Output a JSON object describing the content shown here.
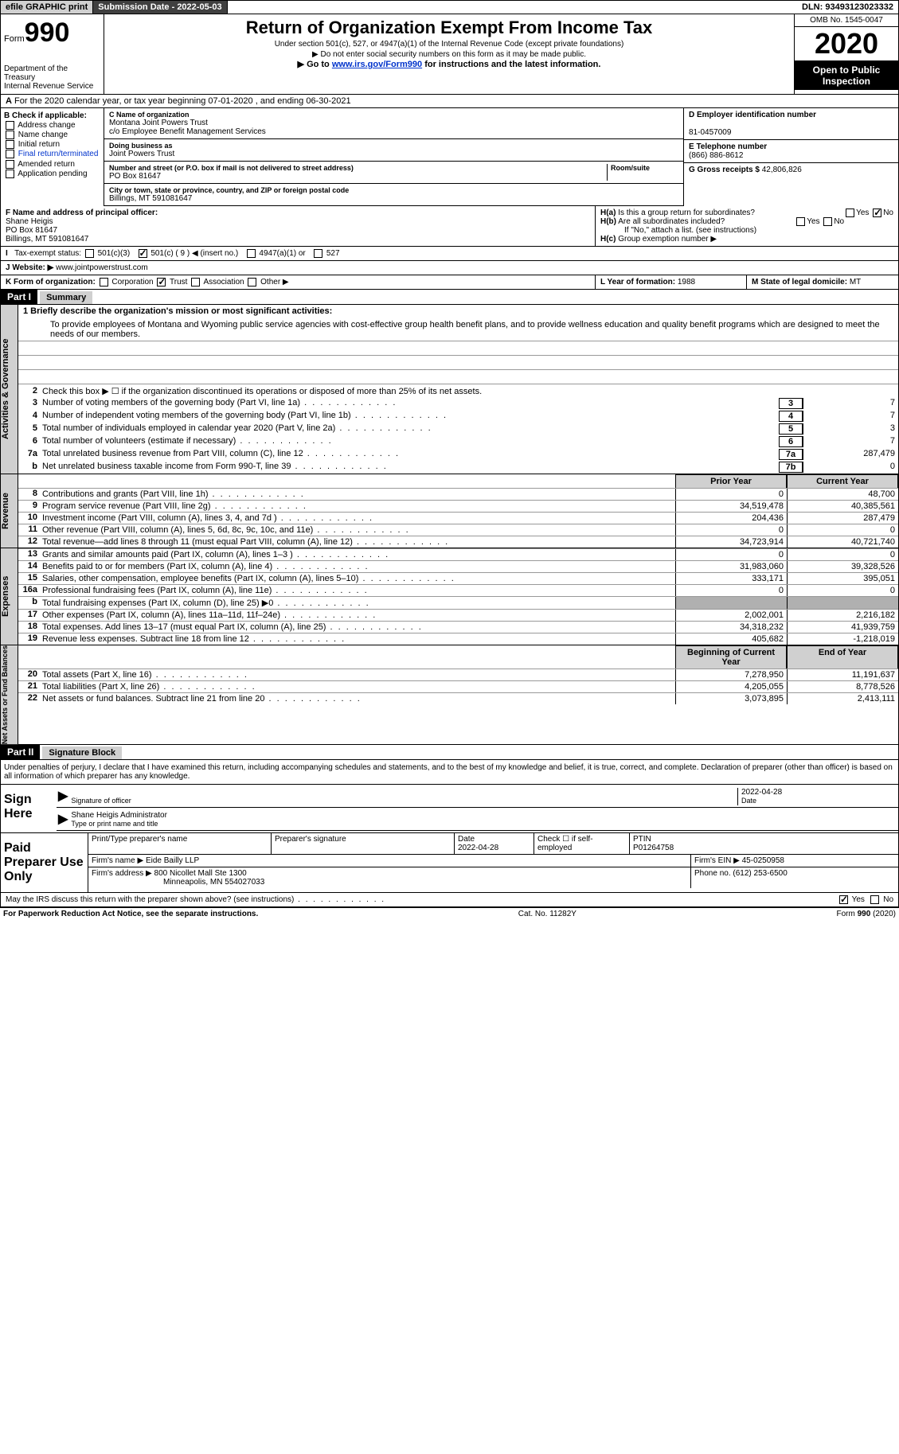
{
  "topbar": {
    "efile": "efile GRAPHIC print",
    "submission": "Submission Date - 2022-05-03",
    "dln": "DLN: 93493123023332"
  },
  "header": {
    "form_label": "Form",
    "form_num": "990",
    "title": "Return of Organization Exempt From Income Tax",
    "sub1": "Under section 501(c), 527, or 4947(a)(1) of the Internal Revenue Code (except private foundations)",
    "sub2": "▶ Do not enter social security numbers on this form as it may be made public.",
    "sub3_pre": "▶ Go to ",
    "sub3_link": "www.irs.gov/Form990",
    "sub3_post": " for instructions and the latest information.",
    "dept": "Department of the Treasury\nInternal Revenue Service",
    "omb": "OMB No. 1545-0047",
    "year": "2020",
    "inspect": "Open to Public Inspection"
  },
  "row_a": "For the 2020 calendar year, or tax year beginning 07-01-2020     , and ending 06-30-2021",
  "box_b": {
    "title": "B Check if applicable:",
    "items": [
      "Address change",
      "Name change",
      "Initial return",
      "Final return/terminated",
      "Amended return",
      "Application pending"
    ]
  },
  "box_c": {
    "label": "C Name of organization",
    "name": "Montana Joint Powers Trust",
    "co": "c/o Employee Benefit Management Services",
    "dba_label": "Doing business as",
    "dba": "Joint Powers Trust",
    "addr_label": "Number and street (or P.O. box if mail is not delivered to street address)",
    "room_label": "Room/suite",
    "addr": "PO Box 81647",
    "city_label": "City or town, state or province, country, and ZIP or foreign postal code",
    "city": "Billings, MT  591081647"
  },
  "box_d": {
    "label": "D Employer identification number",
    "val": "81-0457009"
  },
  "box_e": {
    "label": "E Telephone number",
    "val": "(866) 886-8612"
  },
  "box_g": {
    "label": "G Gross receipts $",
    "val": "42,806,826"
  },
  "box_f": {
    "label": "F Name and address of principal officer:",
    "name": "Shane Heigis",
    "addr": "PO Box 81647",
    "city": "Billings, MT  591081647"
  },
  "box_h": {
    "a": "Is this a group return for subordinates?",
    "b": "Are all subordinates included?",
    "note": "If \"No,\" attach a list. (see instructions)",
    "c": "Group exemption number ▶"
  },
  "tax_status": {
    "label": "Tax-exempt status:",
    "opts": [
      "501(c)(3)",
      "501(c) ( 9 ) ◀ (insert no.)",
      "4947(a)(1) or",
      "527"
    ]
  },
  "website": {
    "label": "J   Website: ▶",
    "val": "www.jointpowerstrust.com"
  },
  "box_k": {
    "label": "K Form of organization:",
    "opts": [
      "Corporation",
      "Trust",
      "Association",
      "Other ▶"
    ]
  },
  "box_l": {
    "label": "L Year of formation:",
    "val": "1988"
  },
  "box_m": {
    "label": "M State of legal domicile:",
    "val": "MT"
  },
  "part1": {
    "header": "Part I",
    "title": "Summary",
    "mission_label": "1   Briefly describe the organization's mission or most significant activities:",
    "mission": "To provide employees of Montana and Wyoming public service agencies with cost-effective group health benefit plans, and to provide wellness education and quality benefit programs which are designed to meet the needs of our members.",
    "line2": "Check this box ▶ ☐ if the organization discontinued its operations or disposed of more than 25% of its net assets.",
    "gov_lines": [
      {
        "n": "3",
        "d": "Number of voting members of the governing body (Part VI, line 1a)",
        "box": "3",
        "v": "7"
      },
      {
        "n": "4",
        "d": "Number of independent voting members of the governing body (Part VI, line 1b)",
        "box": "4",
        "v": "7"
      },
      {
        "n": "5",
        "d": "Total number of individuals employed in calendar year 2020 (Part V, line 2a)",
        "box": "5",
        "v": "3"
      },
      {
        "n": "6",
        "d": "Total number of volunteers (estimate if necessary)",
        "box": "6",
        "v": "7"
      },
      {
        "n": "7a",
        "d": "Total unrelated business revenue from Part VIII, column (C), line 12",
        "box": "7a",
        "v": "287,479"
      },
      {
        "n": "b",
        "d": "Net unrelated business taxable income from Form 990-T, line 39",
        "box": "7b",
        "v": "0"
      }
    ],
    "col_hdr": {
      "py": "Prior Year",
      "cy": "Current Year",
      "bcy": "Beginning of Current Year",
      "eoy": "End of Year"
    },
    "rev_lines": [
      {
        "n": "8",
        "d": "Contributions and grants (Part VIII, line 1h)",
        "c1": "0",
        "c2": "48,700"
      },
      {
        "n": "9",
        "d": "Program service revenue (Part VIII, line 2g)",
        "c1": "34,519,478",
        "c2": "40,385,561"
      },
      {
        "n": "10",
        "d": "Investment income (Part VIII, column (A), lines 3, 4, and 7d )",
        "c1": "204,436",
        "c2": "287,479"
      },
      {
        "n": "11",
        "d": "Other revenue (Part VIII, column (A), lines 5, 6d, 8c, 9c, 10c, and 11e)",
        "c1": "0",
        "c2": "0"
      },
      {
        "n": "12",
        "d": "Total revenue—add lines 8 through 11 (must equal Part VIII, column (A), line 12)",
        "c1": "34,723,914",
        "c2": "40,721,740"
      }
    ],
    "exp_lines": [
      {
        "n": "13",
        "d": "Grants and similar amounts paid (Part IX, column (A), lines 1–3 )",
        "c1": "0",
        "c2": "0"
      },
      {
        "n": "14",
        "d": "Benefits paid to or for members (Part IX, column (A), line 4)",
        "c1": "31,983,060",
        "c2": "39,328,526"
      },
      {
        "n": "15",
        "d": "Salaries, other compensation, employee benefits (Part IX, column (A), lines 5–10)",
        "c1": "333,171",
        "c2": "395,051"
      },
      {
        "n": "16a",
        "d": "Professional fundraising fees (Part IX, column (A), line 11e)",
        "c1": "0",
        "c2": "0"
      },
      {
        "n": "b",
        "d": "Total fundraising expenses (Part IX, column (D), line 25) ▶0",
        "c1": "",
        "c2": "",
        "shade": true
      },
      {
        "n": "17",
        "d": "Other expenses (Part IX, column (A), lines 11a–11d, 11f–24e)",
        "c1": "2,002,001",
        "c2": "2,216,182"
      },
      {
        "n": "18",
        "d": "Total expenses. Add lines 13–17 (must equal Part IX, column (A), line 25)",
        "c1": "34,318,232",
        "c2": "41,939,759"
      },
      {
        "n": "19",
        "d": "Revenue less expenses. Subtract line 18 from line 12",
        "c1": "405,682",
        "c2": "-1,218,019"
      }
    ],
    "na_lines": [
      {
        "n": "20",
        "d": "Total assets (Part X, line 16)",
        "c1": "7,278,950",
        "c2": "11,191,637"
      },
      {
        "n": "21",
        "d": "Total liabilities (Part X, line 26)",
        "c1": "4,205,055",
        "c2": "8,778,526"
      },
      {
        "n": "22",
        "d": "Net assets or fund balances. Subtract line 21 from line 20",
        "c1": "3,073,895",
        "c2": "2,413,111"
      }
    ],
    "tabs": {
      "gov": "Activities & Governance",
      "rev": "Revenue",
      "exp": "Expenses",
      "na": "Net Assets or Fund Balances"
    }
  },
  "part2": {
    "header": "Part II",
    "title": "Signature Block",
    "decl": "Under penalties of perjury, I declare that I have examined this return, including accompanying schedules and statements, and to the best of my knowledge and belief, it is true, correct, and complete. Declaration of preparer (other than officer) is based on all information of which preparer has any knowledge.",
    "sign_here": "Sign Here",
    "sig_officer": "Signature of officer",
    "sig_date": "2022-04-28",
    "date_lbl": "Date",
    "officer_name": "Shane Heigis  Administrator",
    "type_name": "Type or print name and title",
    "paid_prep": "Paid Preparer Use Only",
    "prep_hdr": {
      "name": "Print/Type preparer's name",
      "sig": "Preparer's signature",
      "date": "Date",
      "dval": "2022-04-28",
      "check": "Check ☐ if self-employed",
      "ptin_l": "PTIN",
      "ptin": "P01264758"
    },
    "firm": {
      "name_l": "Firm's name   ▶",
      "name": "Eide Bailly LLP",
      "ein_l": "Firm's EIN ▶",
      "ein": "45-0250958",
      "addr_l": "Firm's address ▶",
      "addr": "800 Nicollet Mall Ste 1300",
      "city": "Minneapolis, MN  554027033",
      "phone_l": "Phone no.",
      "phone": "(612) 253-6500"
    },
    "discuss": "May the IRS discuss this return with the preparer shown above? (see instructions)"
  },
  "footer": {
    "l": "For Paperwork Reduction Act Notice, see the separate instructions.",
    "m": "Cat. No. 11282Y",
    "r": "Form 990 (2020)"
  }
}
